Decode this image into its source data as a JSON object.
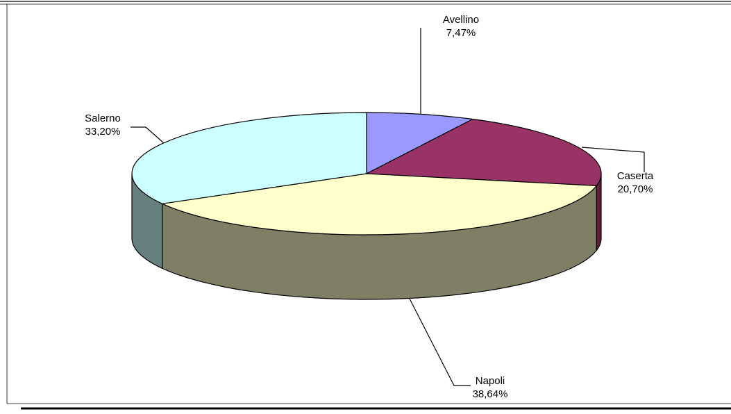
{
  "chart_data": {
    "type": "pie",
    "style": "3d-exploded-depth",
    "title": "",
    "slices": [
      {
        "label": "Avellino",
        "value": 7.47,
        "value_label": "7,47%",
        "top_color": "#9999ff",
        "side_color": "#5c5c99"
      },
      {
        "label": "Caserta",
        "value": 20.7,
        "value_label": "20,70%",
        "top_color": "#993366",
        "side_color": "#5c1f3d"
      },
      {
        "label": "Napoli",
        "value": 38.64,
        "value_label": "38,64%",
        "top_color": "#ffffcc",
        "side_color": "#7f7f66"
      },
      {
        "label": "Salerno",
        "value": 33.2,
        "value_label": "33,20%",
        "top_color": "#ccffff",
        "side_color": "#668080"
      }
    ],
    "legend": "none",
    "data_labels": "category and percentage with leader lines"
  }
}
